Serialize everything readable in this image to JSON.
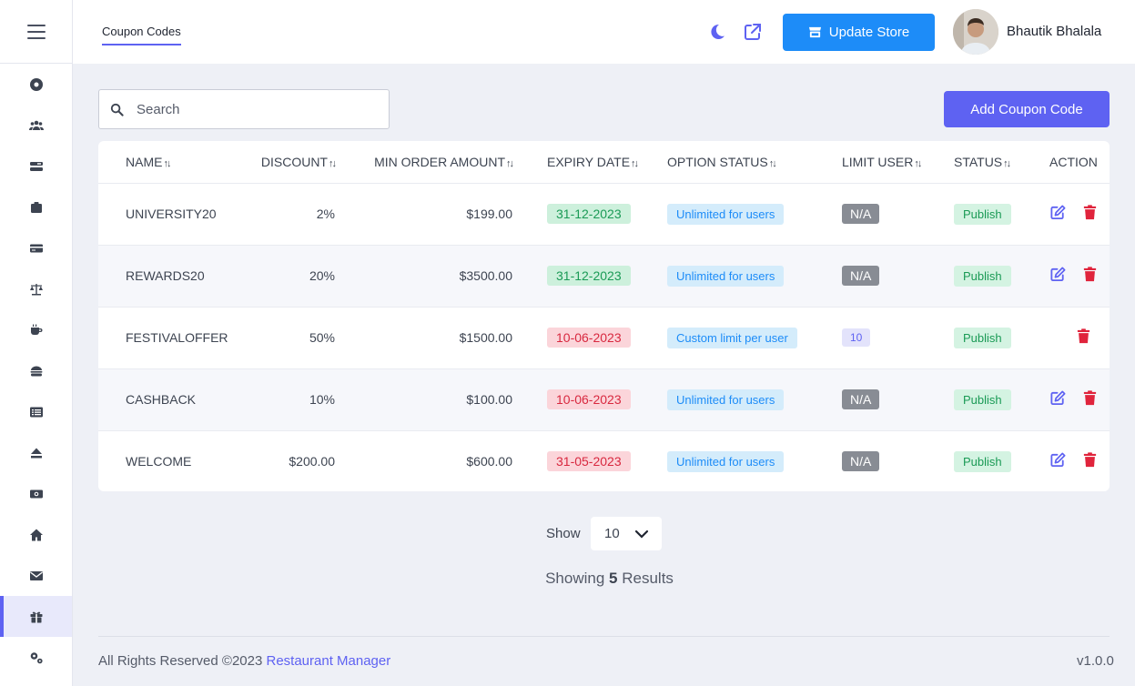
{
  "header": {
    "page_tab": "Coupon Codes",
    "update_store_label": "Update Store",
    "user_name": "Bhautik Bhalala"
  },
  "sidebar": {
    "items": [
      {
        "icon": "dashboard-icon"
      },
      {
        "icon": "users-icon"
      },
      {
        "icon": "tables-icon"
      },
      {
        "icon": "orders-icon"
      },
      {
        "icon": "payments-icon"
      },
      {
        "icon": "balance-icon"
      },
      {
        "icon": "coffee-icon"
      },
      {
        "icon": "food-icon"
      },
      {
        "icon": "menu-list-icon"
      },
      {
        "icon": "eject-icon"
      },
      {
        "icon": "money-icon"
      },
      {
        "icon": "home-icon"
      },
      {
        "icon": "mail-icon"
      },
      {
        "icon": "gift-icon",
        "active": true
      },
      {
        "icon": "settings-icon"
      }
    ]
  },
  "toolbar": {
    "search_placeholder": "Search",
    "add_button_label": "Add Coupon Code"
  },
  "table": {
    "columns": [
      "NAME",
      "DISCOUNT",
      "MIN ORDER AMOUNT",
      "EXPIRY DATE",
      "OPTION STATUS",
      "LIMIT USER",
      "STATUS",
      "ACTION"
    ],
    "rows": [
      {
        "name": "UNIVERSITY20",
        "discount": "2%",
        "min_order": "$199.00",
        "expiry": "31-12-2023",
        "expiry_state": "valid",
        "option": "Unlimited for users",
        "limit": "N/A",
        "status": "Publish",
        "editable": true
      },
      {
        "name": "REWARDS20",
        "discount": "20%",
        "min_order": "$3500.00",
        "expiry": "31-12-2023",
        "expiry_state": "valid",
        "option": "Unlimited for users",
        "limit": "N/A",
        "status": "Publish",
        "editable": true
      },
      {
        "name": "FESTIVALOFFER",
        "discount": "50%",
        "min_order": "$1500.00",
        "expiry": "10-06-2023",
        "expiry_state": "expired",
        "option": "Custom limit per user",
        "limit": "10",
        "status": "Publish",
        "editable": false
      },
      {
        "name": "CASHBACK",
        "discount": "10%",
        "min_order": "$100.00",
        "expiry": "10-06-2023",
        "expiry_state": "expired",
        "option": "Unlimited for users",
        "limit": "N/A",
        "status": "Publish",
        "editable": true
      },
      {
        "name": "WELCOME",
        "discount": "$200.00",
        "min_order": "$600.00",
        "expiry": "31-05-2023",
        "expiry_state": "expired",
        "option": "Unlimited for users",
        "limit": "N/A",
        "status": "Publish",
        "editable": true
      }
    ]
  },
  "pagination": {
    "show_label": "Show",
    "page_size": "10",
    "results_prefix": "Showing",
    "results_count": "5",
    "results_suffix": "Results"
  },
  "footer": {
    "copyright": "All Rights Reserved ©2023",
    "brand": "Restaurant Manager",
    "version": "v1.0.0"
  },
  "colors": {
    "accent": "#5e62f2",
    "update_button": "#1d8cf8",
    "delete_icon": "#e0243c"
  }
}
